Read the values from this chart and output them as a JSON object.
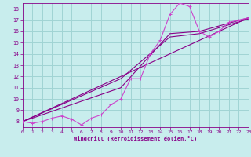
{
  "xlabel": "Windchill (Refroidissement éolien,°C)",
  "xlim": [
    0,
    23
  ],
  "ylim": [
    7.5,
    18.5
  ],
  "xticks": [
    0,
    1,
    2,
    3,
    4,
    5,
    6,
    7,
    8,
    9,
    10,
    11,
    12,
    13,
    14,
    15,
    16,
    17,
    18,
    19,
    20,
    21,
    22,
    23
  ],
  "yticks": [
    8,
    9,
    10,
    11,
    12,
    13,
    14,
    15,
    16,
    17,
    18
  ],
  "bg_color": "#c8eded",
  "grid_color": "#a0d4d4",
  "line_color_dark": "#880088",
  "line_color_bright": "#cc44cc",
  "series1_x": [
    0,
    1,
    2,
    3,
    4,
    5,
    6,
    7,
    8,
    9,
    10,
    11,
    12,
    13,
    14,
    15,
    16,
    17,
    18,
    19,
    20,
    21,
    22,
    23
  ],
  "series1_y": [
    8.0,
    7.85,
    8.0,
    8.3,
    8.5,
    8.2,
    7.7,
    8.3,
    8.6,
    9.5,
    10.0,
    11.8,
    11.8,
    14.0,
    15.2,
    17.5,
    18.5,
    18.2,
    16.0,
    15.5,
    16.0,
    16.8,
    17.0,
    17.2
  ],
  "series2_x": [
    0,
    23
  ],
  "series2_y": [
    8.0,
    17.2
  ],
  "series3_x": [
    0,
    10,
    15,
    18,
    23
  ],
  "series3_y": [
    8.0,
    11.0,
    15.8,
    16.0,
    17.2
  ],
  "series4_x": [
    0,
    10,
    15,
    18,
    23
  ],
  "series4_y": [
    8.0,
    11.8,
    15.5,
    15.8,
    17.1
  ]
}
